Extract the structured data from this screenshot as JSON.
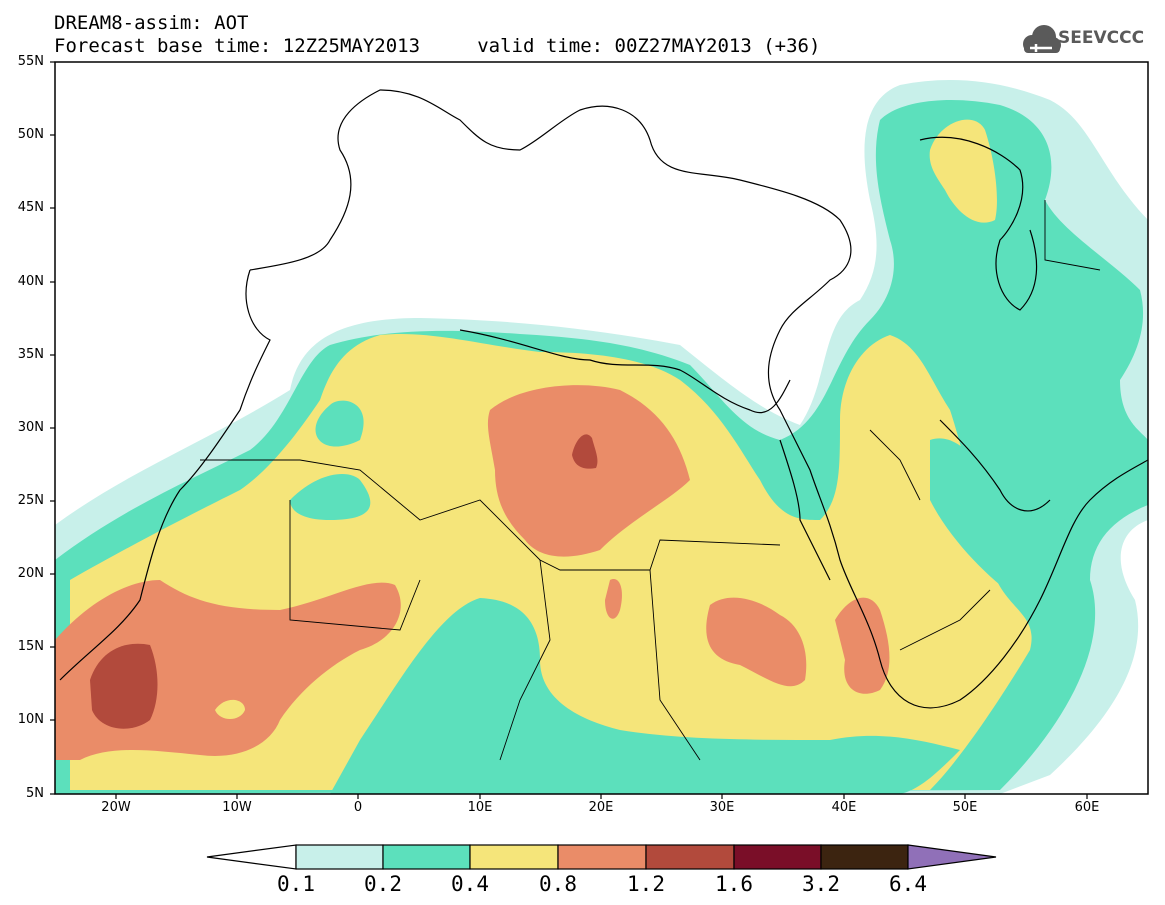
{
  "title": {
    "line1": "DREAM8-assim: AOT",
    "line2": "Forecast base time: 12Z25MAY2013     valid time: 00Z27MAY2013 (+36)"
  },
  "logo": {
    "text": "SEEVCCC",
    "icon": "cloud-icon"
  },
  "map": {
    "lon_range": [
      -25,
      65
    ],
    "lat_range": [
      5,
      55
    ],
    "y_ticks": [
      "55N",
      "50N",
      "45N",
      "40N",
      "35N",
      "30N",
      "25N",
      "20N",
      "15N",
      "10N",
      "5N"
    ],
    "x_ticks": [
      "20W",
      "10W",
      "0",
      "10E",
      "20E",
      "30E",
      "40E",
      "50E",
      "60E"
    ]
  },
  "colorbar": {
    "labels": [
      "0.1",
      "0.2",
      "0.4",
      "0.8",
      "1.2",
      "1.6",
      "3.2",
      "6.4"
    ],
    "colors": {
      "c0_1": "#c8f0ea",
      "c0_2": "#5ce0bc",
      "c0_4": "#f5e57a",
      "c0_8": "#ea8c68",
      "c1_2": "#b24a3c",
      "c1_6": "#7a0e28",
      "c3_2": "#3c2410",
      "c6_4": "#9070b8"
    }
  }
}
